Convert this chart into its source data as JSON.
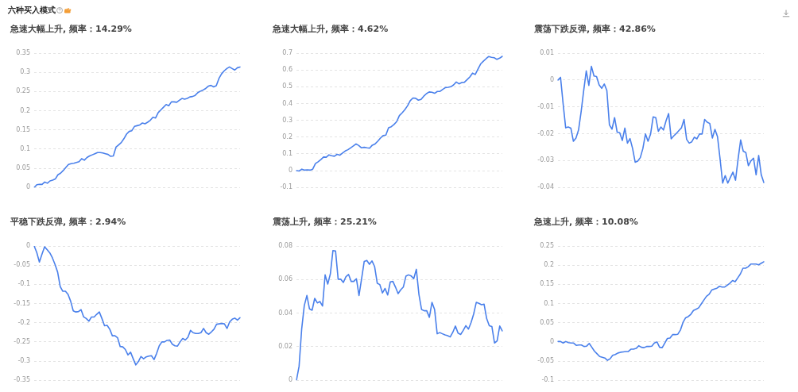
{
  "chart_data": [
    {
      "type": "line",
      "title": "六种买入模式",
      "subtitle": "急速大幅上升, 频率：14.29%",
      "color": "#4a80eb",
      "grid": "y",
      "tick_labels": "y",
      "marker": "none",
      "ylim": [
        0,
        0.35
      ],
      "yticks": [
        0,
        0.05,
        0.1,
        0.15,
        0.2,
        0.25,
        0.3,
        0.35
      ],
      "categories": [
        null,
        null,
        null,
        null,
        null,
        null,
        null,
        null,
        null,
        null,
        null,
        null,
        null,
        null,
        null,
        null,
        null,
        null,
        null,
        null,
        null,
        null,
        null,
        null,
        null,
        null,
        null,
        null,
        null,
        null,
        null,
        null,
        null,
        null,
        null,
        null,
        null,
        null,
        null,
        null,
        null,
        null,
        null,
        null,
        null,
        null,
        null,
        null,
        null,
        null,
        null,
        null,
        null,
        null,
        null,
        null,
        null,
        null,
        null,
        null,
        null,
        null,
        null,
        null,
        null,
        null,
        null,
        null,
        null,
        null,
        null,
        null,
        null,
        null,
        null,
        null,
        null,
        null,
        null
      ],
      "values": [
        0,
        0.007,
        0.008,
        0.008,
        0.014,
        0.011,
        0.017,
        0.019,
        0.022,
        0.033,
        0.037,
        0.044,
        0.052,
        0.06,
        0.062,
        0.063,
        0.065,
        0.067,
        0.075,
        0.071,
        0.078,
        0.082,
        0.085,
        0.088,
        0.091,
        0.091,
        0.09,
        0.088,
        0.086,
        0.081,
        0.082,
        0.105,
        0.111,
        0.117,
        0.127,
        0.139,
        0.146,
        0.148,
        0.159,
        0.161,
        0.163,
        0.168,
        0.166,
        0.17,
        0.175,
        0.183,
        0.181,
        0.195,
        0.202,
        0.209,
        0.216,
        0.213,
        0.223,
        0.223,
        0.222,
        0.227,
        0.232,
        0.23,
        0.232,
        0.236,
        0.237,
        0.24,
        0.247,
        0.251,
        0.254,
        0.258,
        0.264,
        0.266,
        0.262,
        0.265,
        0.284,
        0.296,
        0.304,
        0.31,
        0.314,
        0.31,
        0.306,
        0.312,
        0.314
      ]
    },
    {
      "type": "line",
      "subtitle": "急速大幅上升, 频率：4.62%",
      "color": "#4a80eb",
      "grid": "y",
      "tick_labels": "y",
      "marker": "none",
      "ylim": [
        -0.1,
        0.7
      ],
      "yticks": [
        -0.1,
        0,
        0.1,
        0.2,
        0.3,
        0.4,
        0.5,
        0.6,
        0.7
      ],
      "categories": [
        null,
        null,
        null,
        null,
        null,
        null,
        null,
        null,
        null,
        null,
        null,
        null,
        null,
        null,
        null,
        null,
        null,
        null,
        null,
        null,
        null,
        null,
        null,
        null,
        null,
        null,
        null,
        null,
        null,
        null,
        null,
        null,
        null,
        null,
        null,
        null,
        null,
        null,
        null,
        null,
        null,
        null,
        null,
        null,
        null,
        null,
        null,
        null,
        null,
        null,
        null,
        null,
        null,
        null,
        null,
        null,
        null,
        null,
        null,
        null,
        null,
        null,
        null,
        null,
        null,
        null,
        null,
        null,
        null,
        null,
        null,
        null,
        null,
        null,
        null,
        null,
        null
      ],
      "values": [
        0,
        -0.002,
        0.009,
        0.003,
        0.005,
        0.003,
        0.009,
        0.042,
        0.053,
        0.066,
        0.081,
        0.08,
        0.094,
        0.089,
        0.086,
        0.097,
        0.092,
        0.105,
        0.117,
        0.125,
        0.136,
        0.147,
        0.159,
        0.15,
        0.136,
        0.139,
        0.136,
        0.134,
        0.152,
        0.159,
        0.175,
        0.194,
        0.209,
        0.212,
        0.256,
        0.262,
        0.275,
        0.292,
        0.328,
        0.344,
        0.363,
        0.386,
        0.417,
        0.433,
        0.431,
        0.42,
        0.425,
        0.444,
        0.459,
        0.469,
        0.467,
        0.461,
        0.472,
        0.472,
        0.484,
        0.495,
        0.497,
        0.5,
        0.511,
        0.528,
        0.517,
        0.525,
        0.527,
        0.542,
        0.558,
        0.581,
        0.573,
        0.605,
        0.636,
        0.652,
        0.667,
        0.68,
        0.675,
        0.673,
        0.663,
        0.67,
        0.681
      ]
    },
    {
      "type": "line",
      "subtitle": "震荡下跌反弹, 频率：42.86%",
      "color": "#4a80eb",
      "grid": "y",
      "tick_labels": "y",
      "marker": "none",
      "ylim": [
        -0.04,
        0.01
      ],
      "yticks": [
        -0.04,
        -0.03,
        -0.02,
        -0.01,
        0,
        0.01
      ],
      "categories": [
        null,
        null,
        null,
        null,
        null,
        null,
        null,
        null,
        null,
        null,
        null,
        null,
        null,
        null,
        null,
        null,
        null,
        null,
        null,
        null,
        null,
        null,
        null,
        null,
        null,
        null,
        null,
        null,
        null,
        null,
        null,
        null,
        null,
        null,
        null,
        null,
        null,
        null,
        null,
        null,
        null,
        null,
        null,
        null,
        null,
        null,
        null,
        null,
        null,
        null,
        null,
        null,
        null,
        null,
        null,
        null,
        null,
        null,
        null,
        null,
        null,
        null,
        null,
        null,
        null,
        null,
        null,
        null,
        null,
        null,
        null,
        null,
        null,
        null,
        null,
        null,
        null,
        null,
        null,
        null,
        null
      ],
      "values": [
        0,
        0.001,
        -0.0088,
        -0.0178,
        -0.0175,
        -0.0179,
        -0.0228,
        -0.0216,
        -0.0186,
        -0.0118,
        -0.0039,
        0.0034,
        -0.002,
        0.0051,
        0.0015,
        0.0013,
        -0.0018,
        -0.0031,
        -0.0015,
        -0.0039,
        -0.0167,
        -0.0183,
        -0.014,
        -0.0194,
        -0.0196,
        -0.0225,
        -0.0179,
        -0.0235,
        -0.0218,
        -0.0255,
        -0.0306,
        -0.0302,
        -0.0289,
        -0.0255,
        -0.0201,
        -0.0228,
        -0.0201,
        -0.0137,
        -0.014,
        -0.0191,
        -0.0175,
        -0.0186,
        -0.0152,
        -0.0125,
        -0.0219,
        -0.0208,
        -0.0199,
        -0.0188,
        -0.0178,
        -0.0147,
        -0.0221,
        -0.0235,
        -0.023,
        -0.0213,
        -0.0219,
        -0.0201,
        -0.0201,
        -0.0147,
        -0.0157,
        -0.0162,
        -0.0216,
        -0.0184,
        -0.0211,
        -0.0294,
        -0.0384,
        -0.0356,
        -0.0384,
        -0.0363,
        -0.0343,
        -0.0373,
        -0.0294,
        -0.0223,
        -0.0265,
        -0.027,
        -0.0319,
        -0.0301,
        -0.0291,
        -0.0353,
        -0.0281,
        -0.0353,
        -0.0382
      ]
    },
    {
      "type": "line",
      "subtitle": "平稳下跌反弹, 频率：2.94%",
      "color": "#4a80eb",
      "grid": "y",
      "tick_labels": "y",
      "marker": "none",
      "ylim": [
        -0.35,
        0
      ],
      "yticks": [
        -0.35,
        -0.3,
        -0.25,
        -0.2,
        -0.15,
        -0.1,
        -0.05,
        0
      ],
      "categories": [
        null,
        null,
        null,
        null,
        null,
        null,
        null,
        null,
        null,
        null,
        null,
        null,
        null,
        null,
        null,
        null,
        null,
        null,
        null,
        null,
        null,
        null,
        null,
        null,
        null,
        null,
        null,
        null,
        null,
        null,
        null,
        null,
        null,
        null,
        null,
        null,
        null,
        null,
        null,
        null,
        null,
        null,
        null,
        null,
        null,
        null,
        null,
        null,
        null,
        null,
        null,
        null,
        null,
        null,
        null,
        null,
        null,
        null,
        null,
        null,
        null,
        null,
        null,
        null,
        null,
        null,
        null,
        null,
        null,
        null,
        null,
        null,
        null,
        null,
        null,
        null,
        null,
        null,
        null,
        null
      ],
      "values": [
        0,
        -0.017,
        -0.042,
        -0.021,
        -0.002,
        -0.01,
        -0.018,
        -0.031,
        -0.048,
        -0.068,
        -0.106,
        -0.118,
        -0.118,
        -0.126,
        -0.144,
        -0.169,
        -0.172,
        -0.171,
        -0.166,
        -0.185,
        -0.189,
        -0.196,
        -0.185,
        -0.185,
        -0.178,
        -0.172,
        -0.189,
        -0.208,
        -0.207,
        -0.217,
        -0.234,
        -0.234,
        -0.239,
        -0.262,
        -0.263,
        -0.27,
        -0.284,
        -0.277,
        -0.294,
        -0.31,
        -0.301,
        -0.288,
        -0.294,
        -0.289,
        -0.287,
        -0.286,
        -0.296,
        -0.28,
        -0.26,
        -0.25,
        -0.25,
        -0.246,
        -0.245,
        -0.256,
        -0.26,
        -0.261,
        -0.25,
        -0.241,
        -0.245,
        -0.238,
        -0.22,
        -0.226,
        -0.228,
        -0.228,
        -0.226,
        -0.215,
        -0.226,
        -0.23,
        -0.224,
        -0.217,
        -0.204,
        -0.203,
        -0.202,
        -0.203,
        -0.215,
        -0.198,
        -0.191,
        -0.188,
        -0.193,
        -0.187
      ]
    },
    {
      "type": "line",
      "subtitle": "震荡上升, 频率：25.21%",
      "color": "#4a80eb",
      "grid": "y",
      "tick_labels": "y",
      "marker": "none",
      "ylim": [
        0,
        0.08
      ],
      "yticks": [
        0,
        0.02,
        0.04,
        0.06,
        0.08
      ],
      "categories": [
        null,
        null,
        null,
        null,
        null,
        null,
        null,
        null,
        null,
        null,
        null,
        null,
        null,
        null,
        null,
        null,
        null,
        null,
        null,
        null,
        null,
        null,
        null,
        null,
        null,
        null,
        null,
        null,
        null,
        null,
        null,
        null,
        null,
        null,
        null,
        null,
        null,
        null,
        null,
        null,
        null,
        null,
        null,
        null,
        null,
        null,
        null,
        null,
        null,
        null,
        null,
        null,
        null,
        null,
        null,
        null,
        null,
        null,
        null,
        null,
        null,
        null,
        null,
        null,
        null,
        null,
        null,
        null,
        null,
        null,
        null,
        null,
        null,
        null,
        null,
        null,
        null,
        null,
        null,
        null
      ],
      "values": [
        0,
        0.0083,
        0.0305,
        0.0445,
        0.0505,
        0.0425,
        0.0417,
        0.0488,
        0.0461,
        0.0469,
        0.0442,
        0.0628,
        0.0573,
        0.0633,
        0.0773,
        0.077,
        0.0602,
        0.0602,
        0.0583,
        0.0617,
        0.063,
        0.0589,
        0.0589,
        0.0605,
        0.0505,
        0.0605,
        0.0708,
        0.0714,
        0.0691,
        0.0711,
        0.0677,
        0.0578,
        0.057,
        0.052,
        0.0547,
        0.0508,
        0.0586,
        0.0589,
        0.0555,
        0.0516,
        0.0539,
        0.0555,
        0.062,
        0.0628,
        0.0622,
        0.0605,
        0.0661,
        0.0511,
        0.0422,
        0.0414,
        0.0414,
        0.0375,
        0.0464,
        0.0422,
        0.0277,
        0.0284,
        0.0277,
        0.027,
        0.0266,
        0.0258,
        0.0286,
        0.0323,
        0.0281,
        0.0273,
        0.0297,
        0.0325,
        0.0305,
        0.0344,
        0.0395,
        0.0464,
        0.0458,
        0.045,
        0.0453,
        0.0367,
        0.0325,
        0.032,
        0.0222,
        0.0234,
        0.0323,
        0.0294
      ]
    },
    {
      "type": "line",
      "subtitle": "急速上升, 频率：10.08%",
      "color": "#4a80eb",
      "grid": "y",
      "tick_labels": "y",
      "marker": "none",
      "ylim": [
        -0.1,
        0.25
      ],
      "yticks": [
        -0.1,
        -0.05,
        0,
        0.05,
        0.1,
        0.15,
        0.2,
        0.25
      ],
      "categories": [
        null,
        null,
        null,
        null,
        null,
        null,
        null,
        null,
        null,
        null,
        null,
        null,
        null,
        null,
        null,
        null,
        null,
        null,
        null,
        null,
        null,
        null,
        null,
        null,
        null,
        null,
        null,
        null,
        null,
        null,
        null,
        null,
        null,
        null,
        null,
        null,
        null,
        null,
        null,
        null,
        null,
        null,
        null,
        null,
        null,
        null,
        null,
        null,
        null,
        null,
        null,
        null,
        null,
        null,
        null,
        null,
        null,
        null,
        null,
        null,
        null,
        null,
        null,
        null,
        null,
        null,
        null,
        null,
        null,
        null,
        null,
        null,
        null,
        null,
        null,
        null,
        null,
        null,
        null,
        null
      ],
      "values": [
        0.001,
        0.001,
        -0.003,
        0.001,
        -0.002,
        -0.003,
        -0.003,
        -0.009,
        -0.008,
        -0.008,
        -0.012,
        -0.011,
        -0.004,
        -0.014,
        -0.024,
        -0.031,
        -0.038,
        -0.04,
        -0.042,
        -0.048,
        -0.044,
        -0.035,
        -0.033,
        -0.029,
        -0.027,
        -0.026,
        -0.025,
        -0.025,
        -0.019,
        -0.019,
        -0.017,
        -0.01,
        -0.014,
        -0.015,
        -0.012,
        -0.012,
        -0.011,
        -0.003,
        0,
        -0.014,
        -0.015,
        -0.003,
        0.009,
        0.01,
        0.019,
        0.019,
        0.02,
        0.031,
        0.051,
        0.063,
        0.066,
        0.072,
        0.082,
        0.085,
        0.089,
        0.099,
        0.109,
        0.119,
        0.124,
        0.135,
        0.138,
        0.14,
        0.145,
        0.143,
        0.143,
        0.148,
        0.153,
        0.16,
        0.157,
        0.167,
        0.177,
        0.192,
        0.192,
        0.196,
        0.203,
        0.203,
        0.203,
        0.201,
        0.205,
        0.209
      ]
    }
  ]
}
